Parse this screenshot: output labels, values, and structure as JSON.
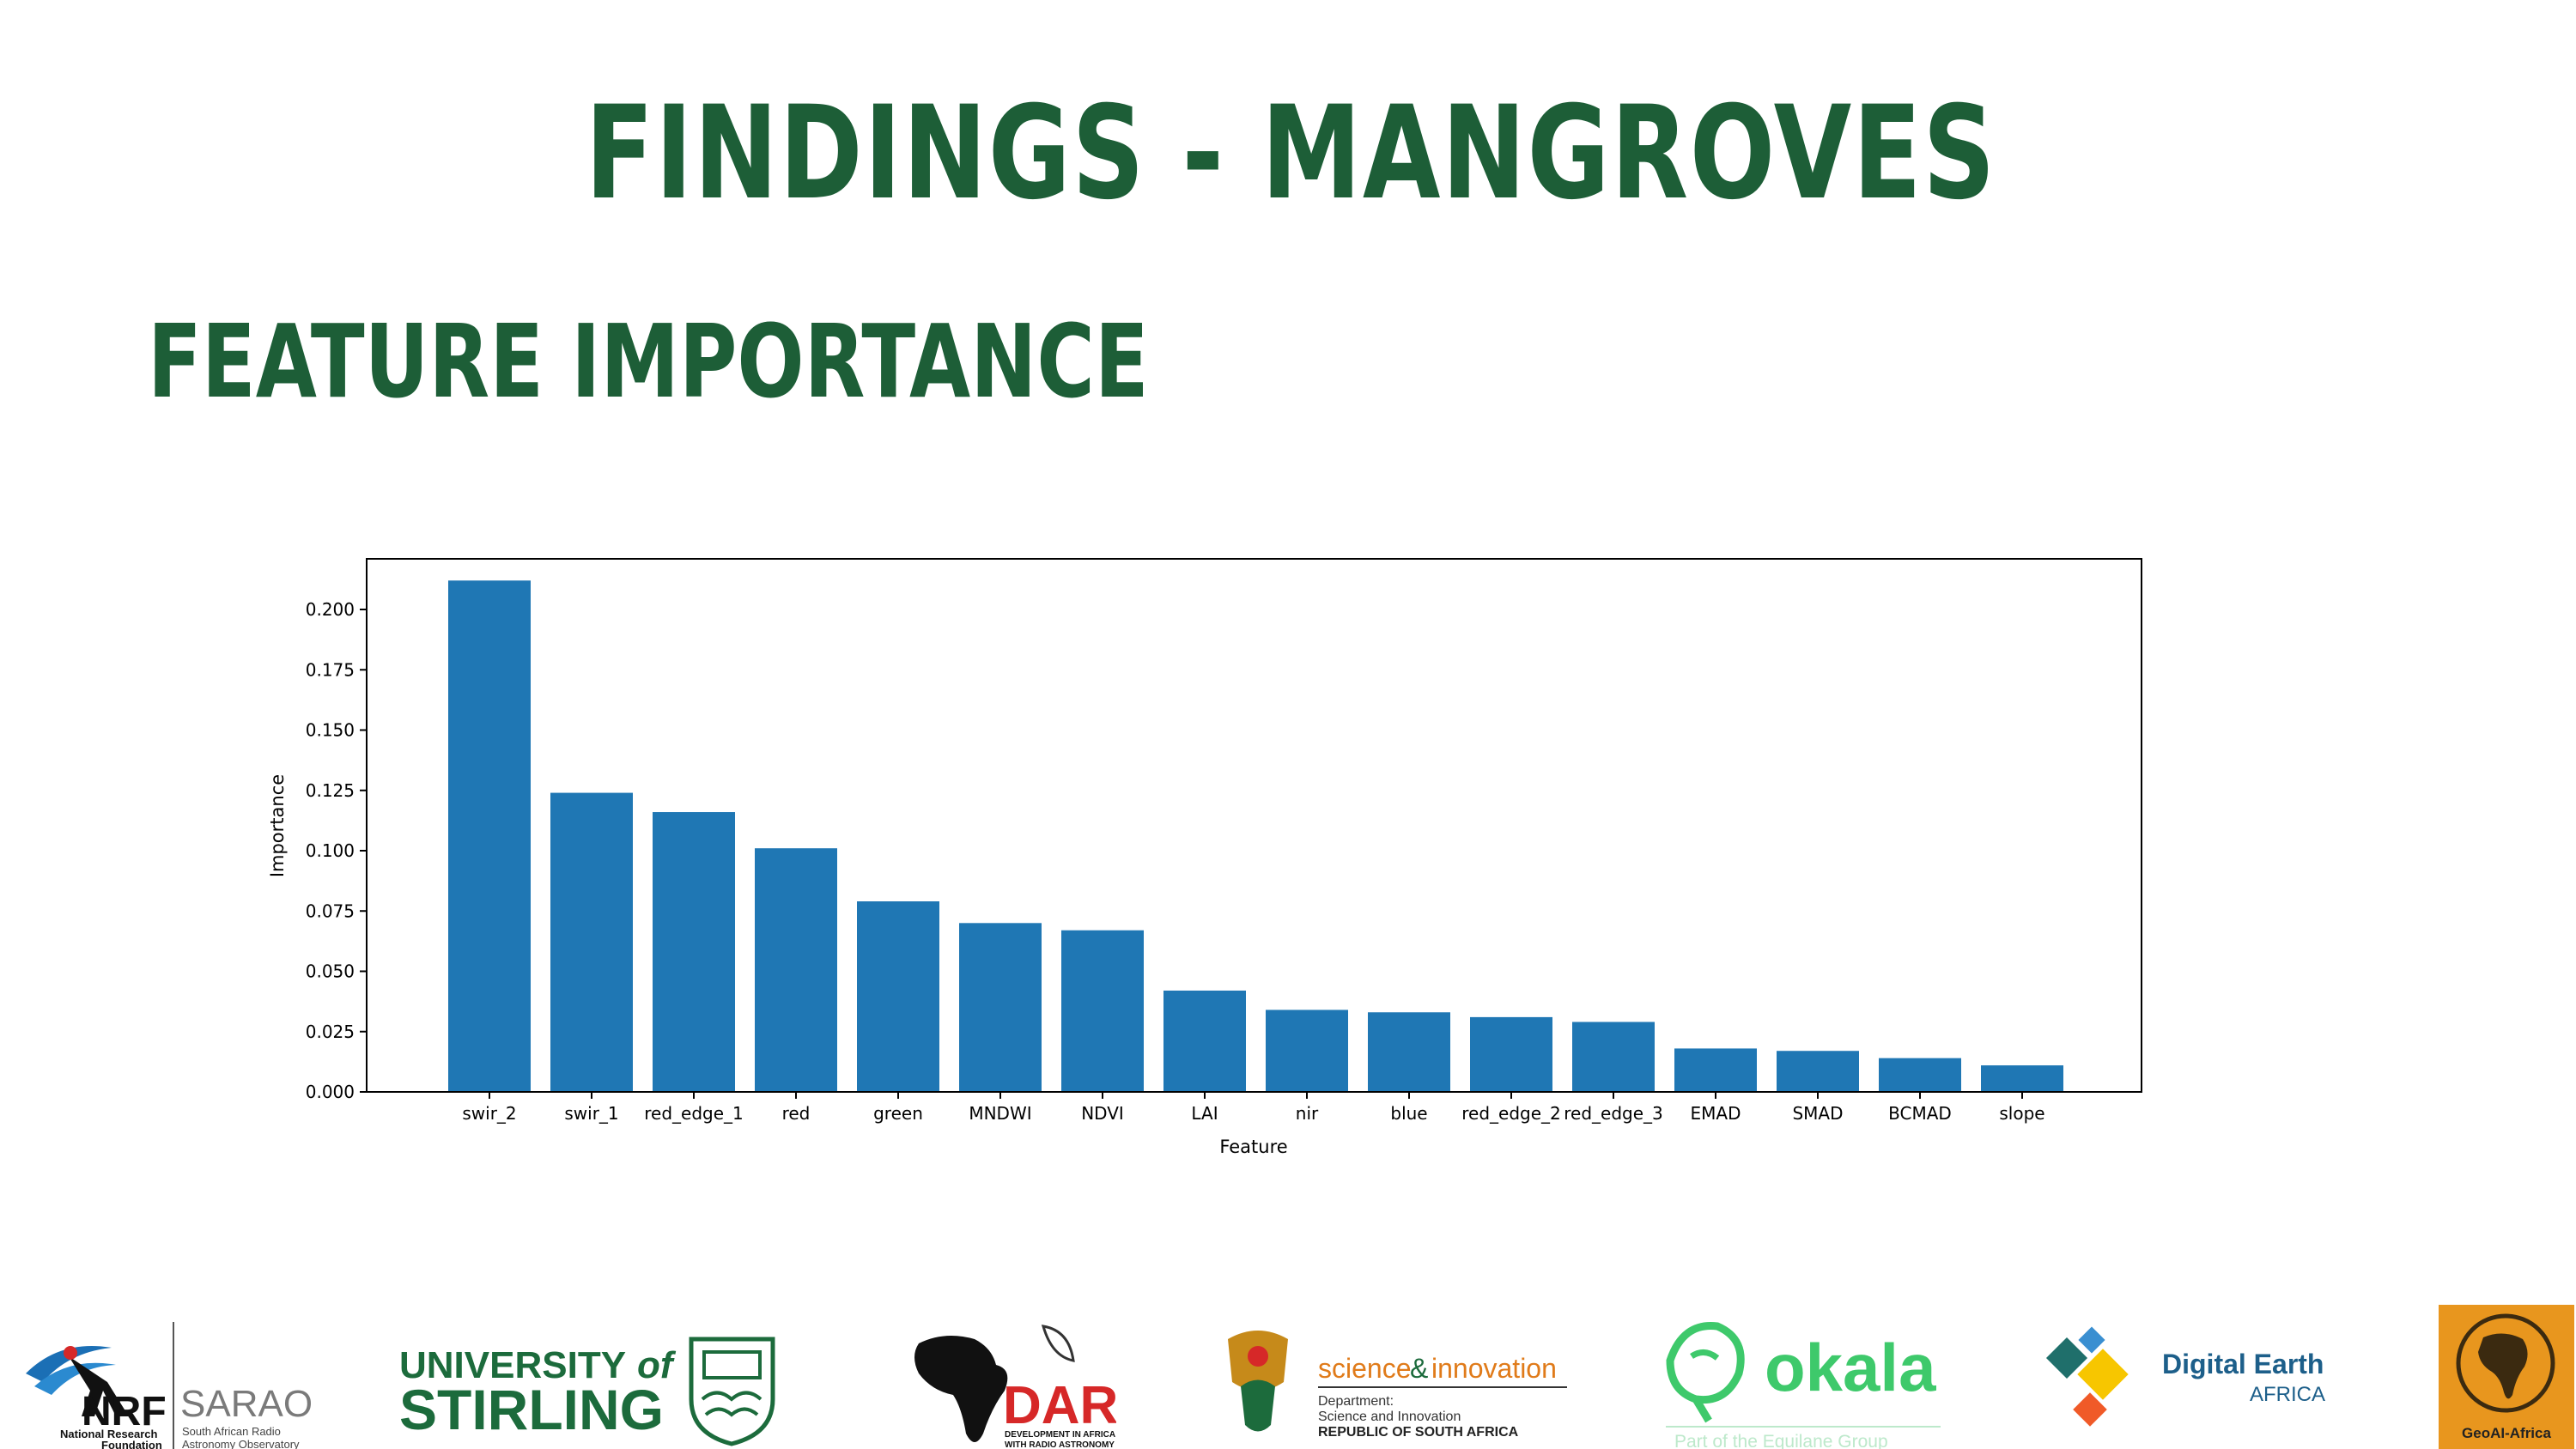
{
  "slide": {
    "title": "FINDINGS - MANGROVES",
    "subtitle": "FEATURE IMPORTANCE"
  },
  "chart_data": {
    "type": "bar",
    "xlabel": "Feature",
    "ylabel": "Importance",
    "ylim": [
      0,
      0.221
    ],
    "yticks": [
      "0.000",
      "0.025",
      "0.050",
      "0.075",
      "0.100",
      "0.125",
      "0.150",
      "0.175",
      "0.200"
    ],
    "categories": [
      "swir_2",
      "swir_1",
      "red_edge_1",
      "red",
      "green",
      "MNDWI",
      "NDVI",
      "LAI",
      "nir",
      "blue",
      "red_edge_2",
      "red_edge_3",
      "EMAD",
      "SMAD",
      "BCMAD",
      "slope"
    ],
    "values": [
      0.212,
      0.124,
      0.116,
      0.101,
      0.079,
      0.07,
      0.067,
      0.042,
      0.034,
      0.033,
      0.031,
      0.029,
      0.018,
      0.017,
      0.014,
      0.011
    ],
    "bar_color": "#1f77b4",
    "grid": false
  },
  "logos": {
    "nrf": {
      "mark": "NRF",
      "line1": "National Research",
      "line2": "Foundation"
    },
    "sarao": {
      "mark": "SARAO",
      "line1": "South African Radio",
      "line2": "Astronomy Observatory"
    },
    "stirling": {
      "line1": "UNIVERSITY",
      "of": "of",
      "line2": "STIRLING"
    },
    "dara": {
      "mark": "DARA",
      "line1": "DEVELOPMENT IN AFRICA",
      "line2": "WITH RADIO ASTRONOMY"
    },
    "dsi": {
      "title_a": "science",
      "amp": "&",
      "title_b": "innovation",
      "line1": "Department:",
      "line2": "Science and Innovation",
      "line3": "REPUBLIC OF SOUTH AFRICA"
    },
    "okala": {
      "mark": "okala",
      "tagline": "Part of the Equilane Group"
    },
    "digital_earth": {
      "line1": "Digital Earth",
      "line2": "AFRICA"
    },
    "geoai": {
      "label": "GeoAI-Africa"
    }
  },
  "colors": {
    "title_green": "#1d5e37",
    "bar_blue": "#1f77b4",
    "okala_green": "#3ec96b",
    "de_blue": "#1d5f8a",
    "geoai_orange": "#e8961e"
  }
}
